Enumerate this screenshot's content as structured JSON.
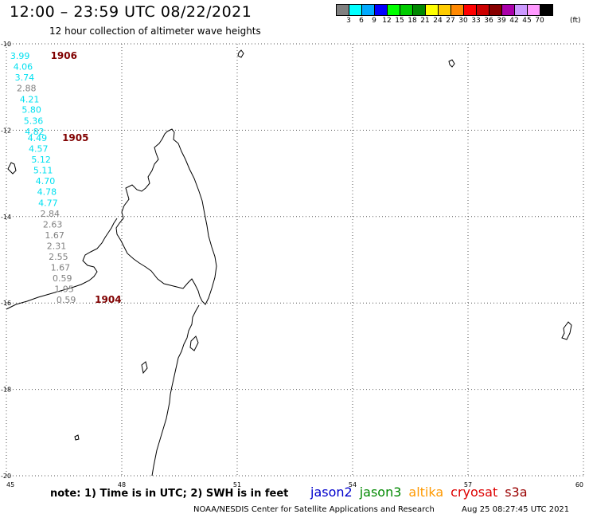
{
  "header": {
    "title": "12:00 – 23:59 UTC 08/22/2021",
    "subtitle": "12 hour collection of altimeter wave heights"
  },
  "legend": {
    "unit": "(ft)",
    "bins": [
      {
        "color": "#808080",
        "label": "3"
      },
      {
        "color": "#00ffff",
        "label": "6"
      },
      {
        "color": "#00aaff",
        "label": "9"
      },
      {
        "color": "#0000ff",
        "label": "12"
      },
      {
        "color": "#00ff00",
        "label": "15"
      },
      {
        "color": "#00cc00",
        "label": "18"
      },
      {
        "color": "#008800",
        "label": "21"
      },
      {
        "color": "#ffff00",
        "label": "24"
      },
      {
        "color": "#ffcc00",
        "label": "27"
      },
      {
        "color": "#ff8800",
        "label": "30"
      },
      {
        "color": "#ff0000",
        "label": "33"
      },
      {
        "color": "#cc0000",
        "label": "36"
      },
      {
        "color": "#880000",
        "label": "39"
      },
      {
        "color": "#aa00aa",
        "label": "42"
      },
      {
        "color": "#cc99ff",
        "label": "45"
      },
      {
        "color": "#ff99ff",
        "label": "70"
      },
      {
        "color": "#000000",
        "label": ""
      }
    ]
  },
  "map": {
    "lon_ticks": [
      "45",
      "48",
      "51",
      "54",
      "57",
      "60"
    ],
    "lat_ticks": [
      "-10",
      "-12",
      "-14",
      "-16",
      "-18",
      "-20"
    ],
    "lon_range": [
      45,
      60
    ],
    "lat_range": [
      -20,
      -10
    ],
    "colors": {
      "cyan": "#00e0f0",
      "gray": "#808080",
      "track_label": "#800000",
      "coastline": "#000000"
    },
    "tracks": [
      {
        "id": "1906",
        "lon": 46.15,
        "lat": -10.35
      },
      {
        "id": "1905",
        "lon": 46.45,
        "lat": -12.25
      },
      {
        "id": "1904",
        "lon": 47.3,
        "lat": -16.0
      }
    ],
    "swh": [
      {
        "value": "3.99",
        "color": "cyan",
        "lon": 45.1,
        "lat": -10.35
      },
      {
        "value": "4.06",
        "color": "cyan",
        "lon": 45.18,
        "lat": -10.6
      },
      {
        "value": "3.74",
        "color": "cyan",
        "lon": 45.22,
        "lat": -10.85
      },
      {
        "value": "2.88",
        "color": "gray",
        "lon": 45.27,
        "lat": -11.1
      },
      {
        "value": "4.21",
        "color": "cyan",
        "lon": 45.35,
        "lat": -11.36
      },
      {
        "value": "5.80",
        "color": "cyan",
        "lon": 45.4,
        "lat": -11.6
      },
      {
        "value": "5.36",
        "color": "cyan",
        "lon": 45.45,
        "lat": -11.85
      },
      {
        "value": "4.82",
        "color": "cyan",
        "lon": 45.48,
        "lat": -12.1
      },
      {
        "value": "4.49",
        "color": "cyan",
        "lon": 45.55,
        "lat": -12.25
      },
      {
        "value": "4.57",
        "color": "cyan",
        "lon": 45.58,
        "lat": -12.5
      },
      {
        "value": "5.12",
        "color": "cyan",
        "lon": 45.65,
        "lat": -12.75
      },
      {
        "value": "5.11",
        "color": "cyan",
        "lon": 45.7,
        "lat": -13.0
      },
      {
        "value": "4.70",
        "color": "cyan",
        "lon": 45.76,
        "lat": -13.25
      },
      {
        "value": "4.78",
        "color": "cyan",
        "lon": 45.8,
        "lat": -13.5
      },
      {
        "value": "4.77",
        "color": "cyan",
        "lon": 45.83,
        "lat": -13.75
      },
      {
        "value": "2.84",
        "color": "gray",
        "lon": 45.88,
        "lat": -14.0
      },
      {
        "value": "2.63",
        "color": "gray",
        "lon": 45.95,
        "lat": -14.25
      },
      {
        "value": "1.67",
        "color": "gray",
        "lon": 46.0,
        "lat": -14.5
      },
      {
        "value": "2.31",
        "color": "gray",
        "lon": 46.05,
        "lat": -14.75
      },
      {
        "value": "2.55",
        "color": "gray",
        "lon": 46.1,
        "lat": -15.0
      },
      {
        "value": "1.67",
        "color": "gray",
        "lon": 46.15,
        "lat": -15.25
      },
      {
        "value": "0.59",
        "color": "gray",
        "lon": 46.2,
        "lat": -15.5
      },
      {
        "value": "1.95",
        "color": "gray",
        "lon": 46.25,
        "lat": -15.75
      },
      {
        "value": "0.59",
        "color": "gray",
        "lon": 46.3,
        "lat": -16.0
      }
    ]
  },
  "footer": {
    "note": "note:  1) Time is in UTC;  2) SWH is in feet",
    "satellites": [
      {
        "name": "jason2",
        "color": "#0000cc"
      },
      {
        "name": "jason3",
        "color": "#008800"
      },
      {
        "name": "altika",
        "color": "#ff9900"
      },
      {
        "name": "cryosat",
        "color": "#dd0000"
      },
      {
        "name": "s3a",
        "color": "#990000"
      }
    ],
    "credit": "NOAA/NESDIS Center for Satellite Applications and Research",
    "timestamp": "Aug 25 08:27:45 UTC 2021"
  }
}
